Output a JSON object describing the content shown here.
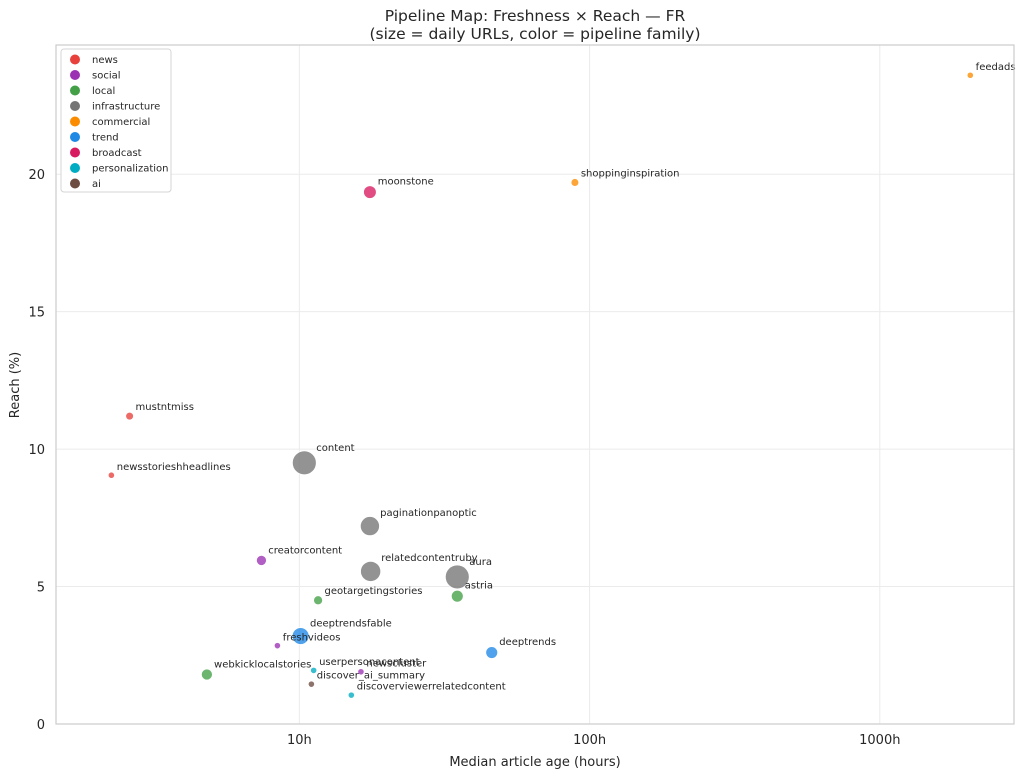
{
  "chart_data": {
    "type": "scatter",
    "title": "Pipeline Map: Freshness × Reach — FR",
    "subtitle": "(size = daily URLs, color = pipeline family)",
    "xlabel": "Median article age (hours)",
    "ylabel": "Reach (%)",
    "x_scale": "log",
    "xlim": [
      1.45,
      2900
    ],
    "ylim": [
      0,
      24.7
    ],
    "x_ticks": [
      {
        "value": 10,
        "label": "10h"
      },
      {
        "value": 100,
        "label": "100h"
      },
      {
        "value": 1000,
        "label": "1000h"
      }
    ],
    "y_ticks": [
      {
        "value": 0,
        "label": "0"
      },
      {
        "value": 5,
        "label": "5"
      },
      {
        "value": 10,
        "label": "10"
      },
      {
        "value": 15,
        "label": "15"
      },
      {
        "value": 20,
        "label": "20"
      }
    ],
    "grid": true,
    "legend_position": "top-left",
    "families": [
      {
        "name": "news",
        "color": "#e8413c"
      },
      {
        "name": "social",
        "color": "#9b32b4"
      },
      {
        "name": "local",
        "color": "#43a047"
      },
      {
        "name": "infrastructure",
        "color": "#757575"
      },
      {
        "name": "commercial",
        "color": "#fb8c00"
      },
      {
        "name": "trend",
        "color": "#1e88e5"
      },
      {
        "name": "broadcast",
        "color": "#d81b60"
      },
      {
        "name": "personalization",
        "color": "#00acc1"
      },
      {
        "name": "ai",
        "color": "#6d4c41"
      }
    ],
    "points": [
      {
        "label": "feedads",
        "family": "commercial",
        "x": 2050,
        "y": 23.6,
        "size": 1
      },
      {
        "label": "shoppinginspiration",
        "family": "commercial",
        "x": 89,
        "y": 19.7,
        "size": 1.5
      },
      {
        "label": "moonstone",
        "family": "broadcast",
        "x": 17.5,
        "y": 19.35,
        "size": 4
      },
      {
        "label": "mustntmiss",
        "family": "news",
        "x": 2.6,
        "y": 11.2,
        "size": 1.5
      },
      {
        "label": "newsstorieshheadlines",
        "family": "news",
        "x": 2.25,
        "y": 9.05,
        "size": 1
      },
      {
        "label": "content",
        "family": "infrastructure",
        "x": 10.4,
        "y": 9.5,
        "size": 14
      },
      {
        "label": "paginationpanoptic",
        "family": "infrastructure",
        "x": 17.5,
        "y": 7.2,
        "size": 9
      },
      {
        "label": "creatorcontent",
        "family": "social",
        "x": 7.4,
        "y": 5.95,
        "size": 2.5
      },
      {
        "label": "relatedcontentruby",
        "family": "infrastructure",
        "x": 17.6,
        "y": 5.55,
        "size": 10
      },
      {
        "label": "aura",
        "family": "infrastructure",
        "x": 35,
        "y": 5.35,
        "size": 14
      },
      {
        "label": "astria",
        "family": "local",
        "x": 35,
        "y": 4.65,
        "size": 3.5
      },
      {
        "label": "geotargetingstories",
        "family": "local",
        "x": 11.6,
        "y": 4.5,
        "size": 2
      },
      {
        "label": "deeptrendsfable",
        "family": "trend",
        "x": 10.1,
        "y": 3.2,
        "size": 7
      },
      {
        "label": "freshvideos",
        "family": "social",
        "x": 8.4,
        "y": 2.85,
        "size": 1
      },
      {
        "label": "deeptrends",
        "family": "trend",
        "x": 46,
        "y": 2.6,
        "size": 3.5
      },
      {
        "label": "webkicklocalstories",
        "family": "local",
        "x": 4.8,
        "y": 1.8,
        "size": 3
      },
      {
        "label": "userpersonacontent",
        "family": "personalization",
        "x": 11.2,
        "y": 1.95,
        "size": 1
      },
      {
        "label": "newscluster",
        "family": "social",
        "x": 16.3,
        "y": 1.9,
        "size": 1
      },
      {
        "label": "discover_ai_summary",
        "family": "ai",
        "x": 11.0,
        "y": 1.45,
        "size": 1
      },
      {
        "label": "discoverviewerrelatedcontent",
        "family": "personalization",
        "x": 15.1,
        "y": 1.05,
        "size": 1
      }
    ]
  }
}
